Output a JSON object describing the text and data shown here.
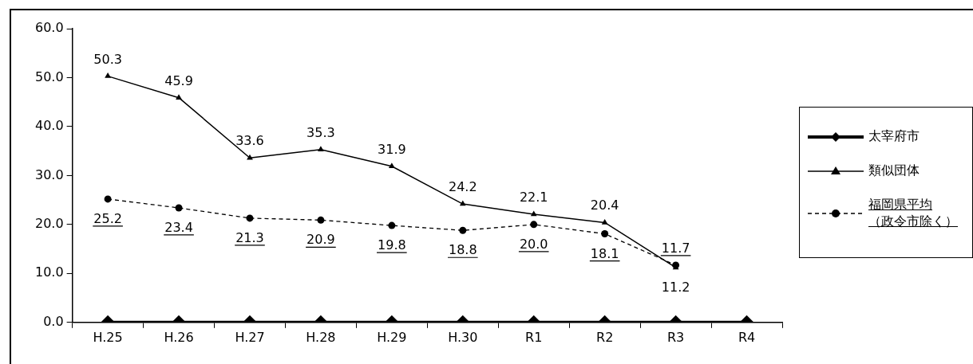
{
  "chart_data": {
    "type": "line",
    "categories": [
      "H.25",
      "H.26",
      "H.27",
      "H.28",
      "H.29",
      "H.30",
      "R1",
      "R2",
      "R3",
      "R4"
    ],
    "series": [
      {
        "name": "太宰府市",
        "color": "#000000",
        "marker": "diamond",
        "line_style": "solid",
        "values": [
          0,
          0,
          0,
          0,
          0,
          0,
          0,
          0,
          0,
          0
        ],
        "value_labels": [
          null,
          null,
          null,
          null,
          null,
          null,
          null,
          null,
          null,
          null
        ]
      },
      {
        "name": "類似団体",
        "color": "#000000",
        "marker": "triangle",
        "line_style": "solid",
        "values": [
          50.3,
          45.9,
          33.6,
          35.3,
          31.9,
          24.2,
          22.1,
          20.4,
          11.2,
          null
        ],
        "value_labels": [
          "50.3",
          "45.9",
          "33.6",
          "35.3",
          "31.9",
          "24.2",
          "22.1",
          "20.4",
          "11.2",
          null
        ]
      },
      {
        "name": "福岡県平均（政令市除く）",
        "color": "#000000",
        "marker": "circle",
        "line_style": "dashed",
        "values": [
          25.2,
          23.4,
          21.3,
          20.9,
          19.8,
          18.8,
          20.0,
          18.1,
          11.7,
          null
        ],
        "value_labels": [
          "25.2",
          "23.4",
          "21.3",
          "20.9",
          "19.8",
          "18.8",
          "20.0",
          "18.1",
          "11.7",
          null
        ]
      }
    ],
    "ylim": [
      0,
      60
    ],
    "yticks": [
      {
        "value": 0,
        "label": "0.0"
      },
      {
        "value": 10,
        "label": "10.0"
      },
      {
        "value": 20,
        "label": "20.0"
      },
      {
        "value": 30,
        "label": "30.0"
      },
      {
        "value": 40,
        "label": "40.0"
      },
      {
        "value": 50,
        "label": "50.0"
      },
      {
        "value": 60,
        "label": "60.0"
      }
    ],
    "grid": false,
    "legend": "right"
  }
}
